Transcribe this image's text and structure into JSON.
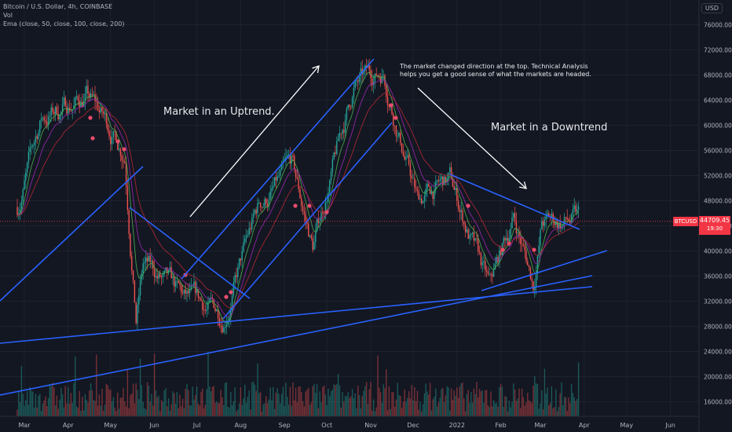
{
  "header": {
    "symbol_line": "Bitcoin / U.S. Dollar, 4h, COINBASE",
    "vol_label": "Vol",
    "ema_label": "Ema (close, 50, close, 100, close, 200)",
    "currency_button": "USD"
  },
  "price_label": {
    "ticker": "BTCUSD",
    "price": "44709.45",
    "countdown": "19:30"
  },
  "annotations": {
    "uptrend": "Market in an Uptrend.",
    "downtrend": "Market in a Downtrend",
    "note_line1": "The market changed direction at the top. Technical Analysis",
    "note_line2": "helps you get a good sense of what the markets are headed."
  },
  "colors": {
    "background": "#131722",
    "up_candle": "#26a69a",
    "down_candle": "#ef5350",
    "trendline": "#2962ff",
    "ema50": "#4caf50",
    "ema100": "#9c27b0",
    "ema200": "#b22833",
    "arrow": "#ffffff",
    "last_price": "#f23645"
  },
  "chart_data": {
    "type": "candlestick",
    "title": "Bitcoin / U.S. Dollar, 4h, COINBASE",
    "x_ticks": [
      "Mar",
      "Apr",
      "May",
      "Jun",
      "Jul",
      "Aug",
      "Sep",
      "Oct",
      "Nov",
      "Dec",
      "2022",
      "Feb",
      "Mar",
      "Apr",
      "May",
      "Jun"
    ],
    "y_ticks": [
      76000,
      72000,
      68000,
      64000,
      60000,
      56000,
      52000,
      48000,
      44000,
      40000,
      36000,
      32000,
      28000,
      24000,
      20000,
      16000
    ],
    "ylim": [
      14000,
      78000
    ],
    "last_price": 44709.45,
    "approx_path": {
      "x": [
        "2021-02-24",
        "2021-03-13",
        "2021-04-14",
        "2021-05-11",
        "2021-05-19",
        "2021-05-24",
        "2021-06-22",
        "2021-07-20",
        "2021-08-14",
        "2021-09-06",
        "2021-09-21",
        "2021-10-20",
        "2021-11-10",
        "2021-12-04",
        "2021-12-27",
        "2022-01-24",
        "2022-02-10",
        "2022-02-24",
        "2022-03-02",
        "2022-03-28"
      ],
      "close": [
        47000,
        61000,
        64800,
        56000,
        30000,
        38000,
        31500,
        29800,
        47000,
        52800,
        40500,
        66000,
        68800,
        48000,
        51000,
        33500,
        45500,
        35000,
        44500,
        44709
      ]
    },
    "series": [
      {
        "name": "Ema (close, 50)"
      },
      {
        "name": "Ema (close, 100)"
      },
      {
        "name": "Ema (close, 200)"
      }
    ],
    "grid": true
  }
}
